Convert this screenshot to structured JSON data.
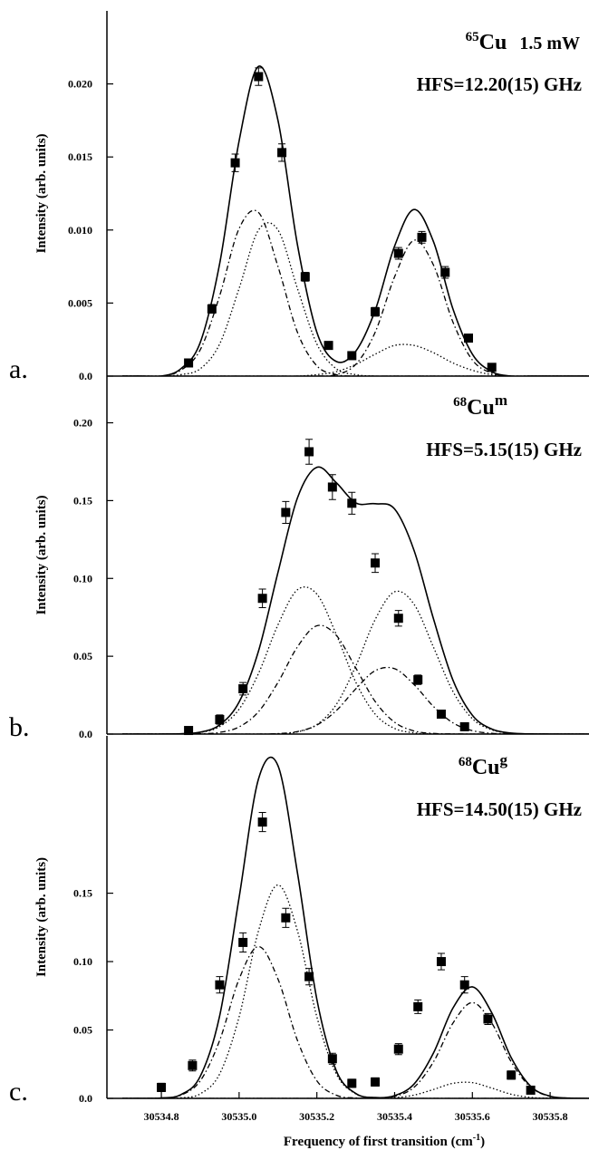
{
  "chart_data": [
    {
      "type": "scatter-fit",
      "panel": "a.",
      "annotation": {
        "isotope": "65",
        "symbol": "Cu",
        "suffix": "1.5 mW",
        "suffix_superscript": false,
        "hfs": "HFS=12.20(15) GHz"
      },
      "ylabel": "Intensity (arb. units)",
      "xlim": [
        30534.66,
        30535.9
      ],
      "ylim": [
        0,
        0.025
      ],
      "yticks": [
        {
          "value": 0,
          "label": "0.0"
        },
        0.005,
        {
          "value": 0.01,
          "label": "0.010"
        },
        0.015,
        {
          "value": 0.02,
          "label": "0.020"
        }
      ],
      "x": [
        30534.87,
        30534.93,
        30534.99,
        30535.05,
        30535.11,
        30535.17,
        30535.23,
        30535.29,
        30535.35,
        30535.41,
        30535.47,
        30535.53,
        30535.59,
        30535.65
      ],
      "series": [
        {
          "color": "#000000",
          "values": [
            0.0009,
            0.0046,
            0.0146,
            0.0205,
            0.0153,
            0.0068,
            0.0021,
            0.0014,
            0.0044,
            0.0084,
            0.0095,
            0.0071,
            0.0026,
            0.0006
          ],
          "errors": [
            0.0002,
            0.0003,
            0.0006,
            0.0006,
            0.0006,
            0.0003,
            0.0002,
            0.0002,
            0.0003,
            0.0004,
            0.0004,
            0.0004,
            0.0002,
            0.0002
          ]
        }
      ],
      "fit_x": [
        30534.7,
        30534.75,
        30534.8,
        30534.85,
        30534.9,
        30534.95,
        30535.0,
        30535.05,
        30535.1,
        30535.15,
        30535.2,
        30535.25,
        30535.3,
        30535.35,
        30535.4,
        30535.45,
        30535.5,
        30535.55,
        30535.6,
        30535.65,
        30535.7,
        30535.75,
        30535.8,
        30535.85,
        30535.9
      ],
      "fits": [
        {
          "style": "solid",
          "color": "#000000",
          "values": [
            0,
            0,
            0,
            0.0005,
            0.0023,
            0.0077,
            0.0161,
            0.0212,
            0.0175,
            0.009,
            0.003,
            0.001,
            0.0017,
            0.0045,
            0.0089,
            0.0114,
            0.0092,
            0.0046,
            0.0015,
            0.0003,
            0,
            0,
            0,
            0,
            0
          ]
        },
        {
          "style": "dashdot",
          "color": "#000000",
          "values": [
            0,
            0,
            0,
            0.0004,
            0.0018,
            0.0055,
            0.0101,
            0.0112,
            0.0075,
            0.003,
            0.0007,
            0.0001,
            0,
            0,
            0,
            0,
            0,
            0,
            0,
            0,
            0,
            0,
            0,
            0,
            0
          ]
        },
        {
          "style": "dotted",
          "color": "#000000",
          "values": [
            0,
            0,
            0,
            0.0001,
            0.0005,
            0.0022,
            0.006,
            0.01,
            0.01,
            0.006,
            0.0022,
            0.0005,
            0.0001,
            0,
            0,
            0,
            0,
            0,
            0,
            0,
            0,
            0,
            0,
            0,
            0
          ]
        },
        {
          "style": "dashdot",
          "color": "#000000",
          "values": [
            0,
            0,
            0,
            0,
            0,
            0,
            0,
            0,
            0,
            0,
            0,
            0.0001,
            0.0008,
            0.003,
            0.0068,
            0.0093,
            0.0076,
            0.0037,
            0.0011,
            0.0002,
            0,
            0,
            0,
            0,
            0
          ]
        },
        {
          "style": "dotted",
          "color": "#000000",
          "values": [
            0,
            0,
            0,
            0,
            0,
            0,
            0,
            0,
            0,
            0,
            0.0001,
            0.0003,
            0.0008,
            0.0015,
            0.0021,
            0.0021,
            0.0016,
            0.0009,
            0.0004,
            0.0001,
            0,
            0,
            0,
            0,
            0
          ]
        }
      ]
    },
    {
      "type": "scatter-fit",
      "panel": "b.",
      "annotation": {
        "isotope": "68",
        "symbol": "Cu",
        "suffix": "m",
        "suffix_superscript": true,
        "hfs": "HFS=5.15(15) GHz"
      },
      "ylabel": "Intensity (arb. units)",
      "xlim": [
        30534.66,
        30535.9
      ],
      "ylim": [
        0,
        0.23
      ],
      "yticks": [
        {
          "value": 0,
          "label": "0.0"
        },
        0.05,
        {
          "value": 0.1,
          "label": "0.10"
        },
        0.15,
        {
          "value": 0.2,
          "label": "0.20"
        }
      ],
      "x": [
        30534.87,
        30534.95,
        30535.01,
        30535.06,
        30535.12,
        30535.18,
        30535.24,
        30535.29,
        30535.35,
        30535.41,
        30535.46,
        30535.52,
        30535.58
      ],
      "series": [
        {
          "color": "#000000",
          "values": [
            0.0023,
            0.0093,
            0.0291,
            0.0872,
            0.1424,
            0.1814,
            0.1587,
            0.1483,
            0.1099,
            0.0744,
            0.0349,
            0.0128,
            0.0047
          ],
          "errors": [
            0.002,
            0.003,
            0.004,
            0.006,
            0.007,
            0.008,
            0.008,
            0.007,
            0.006,
            0.005,
            0.003,
            0.002,
            0.002
          ]
        }
      ],
      "fit_x": [
        30534.7,
        30534.75,
        30534.8,
        30534.85,
        30534.9,
        30534.95,
        30535.0,
        30535.05,
        30535.1,
        30535.15,
        30535.2,
        30535.25,
        30535.3,
        30535.35,
        30535.4,
        30535.45,
        30535.5,
        30535.55,
        30535.6,
        30535.65,
        30535.7,
        30535.75,
        30535.8,
        30535.85,
        30535.9
      ],
      "fits": [
        {
          "style": "solid",
          "color": "#000000",
          "values": [
            0,
            0,
            0,
            0.0002,
            0.0012,
            0.0059,
            0.0206,
            0.0534,
            0.1039,
            0.1517,
            0.1714,
            0.1615,
            0.1485,
            0.148,
            0.1446,
            0.118,
            0.074,
            0.0347,
            0.0121,
            0.0032,
            0.0006,
            0.0001,
            0,
            0,
            0
          ]
        },
        {
          "style": "dotted",
          "color": "#000000",
          "values": [
            0,
            0,
            0,
            0.0002,
            0.001,
            0.0048,
            0.016,
            0.039,
            0.0702,
            0.0927,
            0.0899,
            0.064,
            0.0334,
            0.0128,
            0.0036,
            0.0008,
            0.0001,
            0,
            0,
            0,
            0,
            0,
            0,
            0,
            0
          ]
        },
        {
          "style": "dashdot",
          "color": "#000000",
          "values": [
            0,
            0,
            0,
            0,
            0.0002,
            0.0011,
            0.0046,
            0.0144,
            0.0332,
            0.056,
            0.0696,
            0.0634,
            0.0425,
            0.0209,
            0.0076,
            0.002,
            0.0004,
            0.0001,
            0,
            0,
            0,
            0,
            0,
            0,
            0
          ]
        },
        {
          "style": "dotted",
          "color": "#000000",
          "values": [
            0,
            0,
            0,
            0,
            0,
            0,
            0,
            0,
            0.0002,
            0.0014,
            0.0061,
            0.019,
            0.0436,
            0.0736,
            0.0914,
            0.0834,
            0.0558,
            0.0274,
            0.0099,
            0.0027,
            0.0005,
            0.0001,
            0,
            0,
            0
          ]
        },
        {
          "style": "dashdot",
          "color": "#000000",
          "values": [
            0,
            0,
            0,
            0,
            0,
            0,
            0,
            0,
            0.0003,
            0.0016,
            0.0058,
            0.0151,
            0.029,
            0.0407,
            0.042,
            0.0318,
            0.0177,
            0.0072,
            0.0022,
            0.0005,
            0.0001,
            0,
            0,
            0,
            0
          ]
        }
      ]
    },
    {
      "type": "scatter-fit",
      "panel": "c.",
      "annotation": {
        "isotope": "68",
        "symbol": "Cu",
        "suffix": "g",
        "suffix_superscript": true,
        "hfs": "HFS=14.50(15) GHz"
      },
      "ylabel": "Intensity (arb. units)",
      "xlabel": {
        "text": "Frequency of first transition (cm",
        "superscript": "-1",
        "close": ")"
      },
      "xlim": [
        30534.66,
        30535.9
      ],
      "ylim": [
        0,
        0.265
      ],
      "xticks": [
        30534.8,
        {
          "value": 30535.0,
          "label": "30535.0"
        },
        30535.2,
        30535.4,
        30535.6,
        30535.8
      ],
      "yticks": [
        {
          "value": 0,
          "label": "0.0"
        },
        0.05,
        {
          "value": 0.1,
          "label": "0.10"
        },
        0.15
      ],
      "x": [
        30534.8,
        30534.88,
        30534.95,
        30535.01,
        30535.06,
        30535.12,
        30535.18,
        30535.24,
        30535.29,
        30535.35,
        30535.41,
        30535.46,
        30535.52,
        30535.58,
        30535.64,
        30535.7,
        30535.75
      ],
      "series": [
        {
          "color": "#000000",
          "values": [
            0.008,
            0.024,
            0.083,
            0.114,
            0.202,
            0.132,
            0.089,
            0.029,
            0.011,
            0.012,
            0.036,
            0.067,
            0.1,
            0.083,
            0.058,
            0.017,
            0.006
          ],
          "errors": [
            0.003,
            0.004,
            0.006,
            0.007,
            0.007,
            0.007,
            0.006,
            0.004,
            0.003,
            0.003,
            0.004,
            0.005,
            0.006,
            0.006,
            0.004,
            0.003,
            0.002
          ]
        }
      ],
      "fit_x": [
        30534.7,
        30534.75,
        30534.8,
        30534.85,
        30534.9,
        30534.95,
        30535.0,
        30535.05,
        30535.1,
        30535.15,
        30535.2,
        30535.25,
        30535.3,
        30535.35,
        30535.4,
        30535.45,
        30535.5,
        30535.55,
        30535.6,
        30535.65,
        30535.7,
        30535.75,
        30535.8,
        30535.85,
        30535.9
      ],
      "fits": [
        {
          "style": "solid",
          "color": "#000000",
          "values": [
            0,
            0,
            0.0003,
            0.0027,
            0.0161,
            0.0603,
            0.1468,
            0.2336,
            0.2432,
            0.165,
            0.0724,
            0.0202,
            0.0036,
            0.0006,
            0.002,
            0.0105,
            0.0332,
            0.066,
            0.0815,
            0.0625,
            0.0297,
            0.0088,
            0.0016,
            0.0002,
            0
          ]
        },
        {
          "style": "dashdot",
          "color": "#000000",
          "values": [
            0,
            0,
            0.0003,
            0.0023,
            0.0128,
            0.0424,
            0.0872,
            0.111,
            0.0872,
            0.0424,
            0.0128,
            0.0023,
            0.0003,
            0,
            0,
            0,
            0,
            0,
            0,
            0,
            0,
            0,
            0,
            0,
            0
          ]
        },
        {
          "style": "dotted",
          "color": "#000000",
          "values": [
            0,
            0,
            0,
            0.0004,
            0.0033,
            0.0179,
            0.0596,
            0.1226,
            0.156,
            0.1226,
            0.0596,
            0.0179,
            0.0033,
            0.0004,
            0,
            0,
            0,
            0,
            0,
            0,
            0,
            0,
            0,
            0,
            0
          ]
        },
        {
          "style": "dashdot",
          "color": "#000000",
          "values": [
            0,
            0,
            0,
            0,
            0,
            0,
            0,
            0,
            0,
            0,
            0,
            0,
            0,
            0.0002,
            0.0015,
            0.0081,
            0.0267,
            0.055,
            0.07,
            0.055,
            0.0267,
            0.0081,
            0.0015,
            0.0002,
            0
          ]
        },
        {
          "style": "dotted",
          "color": "#000000",
          "values": [
            0,
            0,
            0,
            0,
            0,
            0,
            0,
            0,
            0,
            0,
            0,
            0,
            0,
            0,
            0.0005,
            0.0024,
            0.0065,
            0.011,
            0.0115,
            0.0075,
            0.003,
            0.0007,
            0.0001,
            0,
            0
          ]
        }
      ]
    }
  ]
}
